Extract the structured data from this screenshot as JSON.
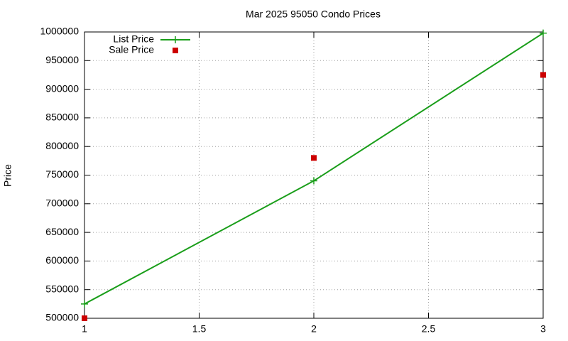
{
  "chart_data": {
    "type": "line",
    "title": "Mar 2025 95050 Condo Prices",
    "y_label": "Price",
    "x": [
      1,
      2,
      3
    ],
    "series": [
      {
        "name": "List Price",
        "color": "#1a9e1a",
        "style": "linespoints",
        "values": [
          525000,
          740000,
          998000
        ]
      },
      {
        "name": "Sale Price",
        "color": "#cc0000",
        "style": "points",
        "values": [
          500000,
          780000,
          925000
        ]
      }
    ],
    "xlim": [
      1,
      3
    ],
    "xticks": [
      1,
      1.5,
      2,
      2.5,
      3
    ],
    "ylim": [
      500000,
      1000000
    ],
    "yticks": [
      500000,
      550000,
      600000,
      650000,
      700000,
      750000,
      800000,
      850000,
      900000,
      950000,
      1000000
    ],
    "grid": true,
    "legend": "top-left"
  }
}
